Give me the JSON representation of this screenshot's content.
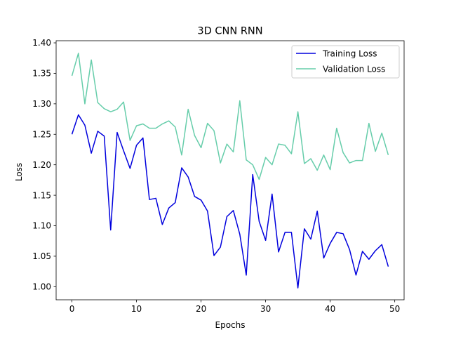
{
  "chart_data": {
    "type": "line",
    "title": "3D CNN RNN",
    "xlabel": "Epochs",
    "ylabel": "Loss",
    "xlim": [
      -2.45,
      51.45
    ],
    "ylim": [
      0.9785,
      1.4035
    ],
    "xticks": [
      0,
      10,
      20,
      30,
      40,
      50
    ],
    "yticks": [
      1.0,
      1.05,
      1.1,
      1.15,
      1.2,
      1.25,
      1.3,
      1.35,
      1.4
    ],
    "ytick_labels": [
      "1.00",
      "1.05",
      "1.10",
      "1.15",
      "1.20",
      "1.25",
      "1.30",
      "1.35",
      "1.40"
    ],
    "grid": false,
    "legend_position": "upper-right",
    "x": [
      0,
      1,
      2,
      3,
      4,
      5,
      6,
      7,
      8,
      9,
      10,
      11,
      12,
      13,
      14,
      15,
      16,
      17,
      18,
      19,
      20,
      21,
      22,
      23,
      24,
      25,
      26,
      27,
      28,
      29,
      30,
      31,
      32,
      33,
      34,
      35,
      36,
      37,
      38,
      39,
      40,
      41,
      42,
      43,
      44,
      45,
      46,
      47,
      48,
      49
    ],
    "series": [
      {
        "name": "Training Loss",
        "color": "#0000dd",
        "values": [
          1.25,
          1.282,
          1.265,
          1.219,
          1.255,
          1.247,
          1.093,
          1.253,
          1.223,
          1.194,
          1.232,
          1.244,
          1.143,
          1.145,
          1.102,
          1.129,
          1.138,
          1.195,
          1.18,
          1.148,
          1.142,
          1.124,
          1.051,
          1.065,
          1.115,
          1.125,
          1.086,
          1.019,
          1.184,
          1.107,
          1.076,
          1.152,
          1.057,
          1.089,
          1.089,
          0.998,
          1.095,
          1.078,
          1.124,
          1.047,
          1.071,
          1.089,
          1.087,
          1.061,
          1.019,
          1.058,
          1.045,
          1.059,
          1.069,
          1.033
        ]
      },
      {
        "name": "Validation Loss",
        "color": "#66cdaa",
        "values": [
          1.346,
          1.383,
          1.3,
          1.372,
          1.302,
          1.292,
          1.287,
          1.291,
          1.303,
          1.24,
          1.264,
          1.267,
          1.26,
          1.26,
          1.267,
          1.272,
          1.262,
          1.216,
          1.291,
          1.248,
          1.228,
          1.268,
          1.256,
          1.203,
          1.234,
          1.221,
          1.305,
          1.208,
          1.2,
          1.176,
          1.212,
          1.2,
          1.234,
          1.232,
          1.218,
          1.287,
          1.202,
          1.21,
          1.191,
          1.216,
          1.192,
          1.26,
          1.22,
          1.203,
          1.207,
          1.207,
          1.268,
          1.222,
          1.252,
          1.216
        ]
      }
    ]
  }
}
